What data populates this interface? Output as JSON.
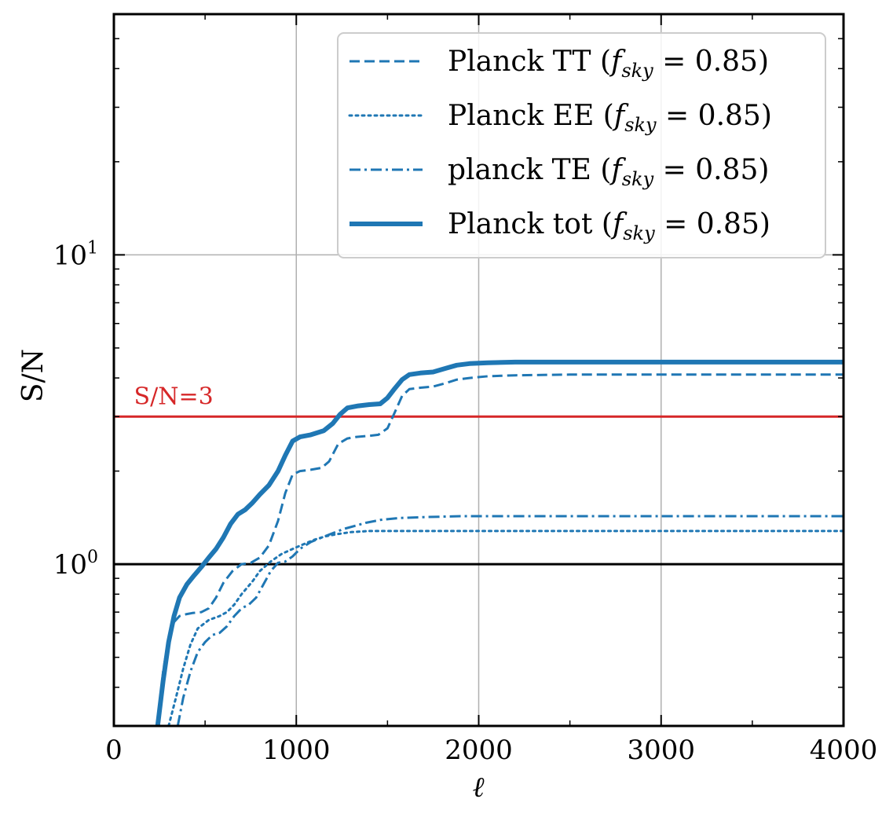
{
  "chart_data": {
    "type": "line",
    "title": "",
    "xlabel": "ℓ",
    "ylabel": "S/N",
    "xlim": [
      0,
      4000
    ],
    "ylim": [
      0.3,
      60
    ],
    "yscale": "log",
    "grid": true,
    "legend_position": "top-right",
    "x_ticks": [
      0,
      1000,
      2000,
      3000,
      4000
    ],
    "x_tick_labels": [
      "0",
      "1000",
      "2000",
      "3000",
      "4000"
    ],
    "y_ticks": [
      1,
      10
    ],
    "y_tick_labels": [
      {
        "base": "10",
        "exp": "0"
      },
      {
        "base": "10",
        "exp": "1"
      }
    ],
    "colors": {
      "series": "#1f77b4",
      "threshold": "#d62728",
      "reference": "#000000"
    },
    "hlines": [
      {
        "name": "S/N=3",
        "y": 3,
        "color": "#d62728",
        "label": "S/N=3",
        "label_x": 110
      },
      {
        "name": "unity",
        "y": 1,
        "color": "#000000"
      }
    ],
    "series": [
      {
        "name": "Planck TT",
        "legend_main": "Planck TT (",
        "legend_var": "f",
        "legend_sub": "sky",
        "legend_tail": " = 0.85)",
        "style": "dashed",
        "width": 3,
        "x": [
          240,
          270,
          300,
          330,
          360,
          400,
          430,
          480,
          520,
          560,
          600,
          650,
          700,
          750,
          800,
          850,
          900,
          940,
          980,
          1020,
          1080,
          1140,
          1180,
          1230,
          1280,
          1330,
          1400,
          1450,
          1500,
          1540,
          1580,
          1620,
          1680,
          1750,
          1820,
          1880,
          1950,
          2050,
          2200,
          2500,
          3000,
          3500,
          4000
        ],
        "y": [
          0.3,
          0.45,
          0.58,
          0.65,
          0.68,
          0.69,
          0.695,
          0.7,
          0.72,
          0.78,
          0.87,
          0.95,
          1.0,
          1.01,
          1.05,
          1.15,
          1.38,
          1.7,
          1.95,
          2.0,
          2.02,
          2.05,
          2.15,
          2.45,
          2.55,
          2.58,
          2.6,
          2.62,
          2.75,
          3.1,
          3.5,
          3.68,
          3.72,
          3.75,
          3.85,
          3.95,
          4.0,
          4.05,
          4.08,
          4.1,
          4.1,
          4.1,
          4.1
        ]
      },
      {
        "name": "Planck EE",
        "legend_main": "Planck EE (",
        "legend_var": "f",
        "legend_sub": "sky",
        "legend_tail": " = 0.85)",
        "style": "dotted",
        "width": 3,
        "x": [
          300,
          340,
          380,
          420,
          460,
          520,
          580,
          620,
          660,
          700,
          760,
          800,
          860,
          920,
          980,
          1040,
          1100,
          1160,
          1220,
          1300,
          1400,
          1500,
          1700,
          2000,
          2500,
          3000,
          3500,
          4000
        ],
        "y": [
          0.3,
          0.37,
          0.46,
          0.55,
          0.62,
          0.66,
          0.68,
          0.7,
          0.74,
          0.8,
          0.88,
          0.95,
          1.02,
          1.08,
          1.12,
          1.16,
          1.2,
          1.23,
          1.25,
          1.27,
          1.28,
          1.28,
          1.28,
          1.28,
          1.28,
          1.28,
          1.28,
          1.28
        ]
      },
      {
        "name": "planck TE",
        "legend_main": "planck TE (",
        "legend_var": "f",
        "legend_sub": "sky",
        "legend_tail": " = 0.85)",
        "style": "dashdot",
        "width": 3,
        "x": [
          350,
          380,
          420,
          460,
          500,
          540,
          580,
          620,
          660,
          700,
          740,
          780,
          820,
          860,
          900,
          940,
          980,
          1020,
          1080,
          1140,
          1200,
          1260,
          1320,
          1380,
          1460,
          1560,
          1700,
          1900,
          2200,
          2600,
          3000,
          3500,
          4000
        ],
        "y": [
          0.3,
          0.37,
          0.45,
          0.52,
          0.56,
          0.59,
          0.6,
          0.63,
          0.68,
          0.72,
          0.74,
          0.78,
          0.86,
          0.95,
          1.01,
          1.02,
          1.06,
          1.12,
          1.18,
          1.22,
          1.26,
          1.3,
          1.33,
          1.36,
          1.39,
          1.41,
          1.42,
          1.43,
          1.43,
          1.43,
          1.43,
          1.43,
          1.43
        ]
      },
      {
        "name": "Planck tot",
        "legend_main": "Planck tot (",
        "legend_var": "f",
        "legend_sub": "sky",
        "legend_tail": " = 0.85)",
        "style": "solid",
        "width": 6,
        "x": [
          240,
          270,
          300,
          330,
          360,
          400,
          440,
          480,
          520,
          560,
          600,
          640,
          680,
          720,
          760,
          800,
          850,
          900,
          940,
          980,
          1020,
          1080,
          1150,
          1200,
          1240,
          1280,
          1340,
          1400,
          1460,
          1500,
          1540,
          1580,
          1620,
          1680,
          1750,
          1820,
          1880,
          1950,
          2050,
          2200,
          2500,
          3000,
          3500,
          4000
        ],
        "y": [
          0.3,
          0.42,
          0.56,
          0.68,
          0.78,
          0.86,
          0.92,
          0.98,
          1.05,
          1.12,
          1.22,
          1.35,
          1.45,
          1.5,
          1.58,
          1.68,
          1.8,
          2.0,
          2.25,
          2.5,
          2.58,
          2.62,
          2.7,
          2.85,
          3.05,
          3.2,
          3.25,
          3.28,
          3.3,
          3.45,
          3.7,
          3.95,
          4.1,
          4.15,
          4.18,
          4.3,
          4.4,
          4.45,
          4.48,
          4.5,
          4.5,
          4.5,
          4.5,
          4.5
        ]
      }
    ]
  }
}
